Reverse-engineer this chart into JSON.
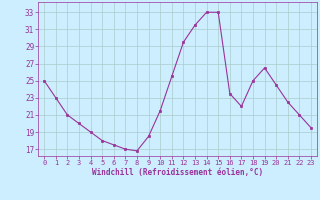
{
  "x": [
    0,
    1,
    2,
    3,
    4,
    5,
    6,
    7,
    8,
    9,
    10,
    11,
    12,
    13,
    14,
    15,
    16,
    17,
    18,
    19,
    20,
    21,
    22,
    23
  ],
  "y": [
    25,
    23,
    21,
    20,
    19,
    18,
    17.5,
    17,
    16.8,
    18.5,
    21.5,
    25.5,
    29.5,
    31.5,
    33,
    33,
    23.5,
    22,
    25,
    26.5,
    24.5,
    22.5,
    21,
    19.5
  ],
  "line_color": "#993399",
  "marker": "s",
  "marker_size": 2,
  "bg_color": "#cceeff",
  "grid_color": "#aacccc",
  "xlabel": "Windchill (Refroidissement éolien,°C)",
  "xlabel_color": "#993399",
  "yticks": [
    17,
    19,
    21,
    23,
    25,
    27,
    29,
    31,
    33
  ],
  "xticks": [
    0,
    1,
    2,
    3,
    4,
    5,
    6,
    7,
    8,
    9,
    10,
    11,
    12,
    13,
    14,
    15,
    16,
    17,
    18,
    19,
    20,
    21,
    22,
    23
  ],
  "ylim": [
    16.2,
    34.2
  ],
  "xlim": [
    -0.5,
    23.5
  ],
  "figsize": [
    3.2,
    2.0
  ],
  "dpi": 100
}
